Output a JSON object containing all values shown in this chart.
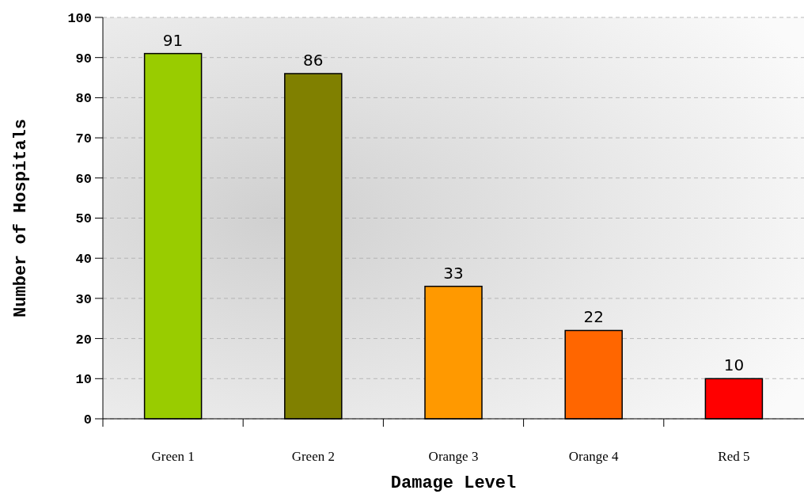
{
  "chart_data": {
    "type": "bar",
    "xlabel": "Damage Level",
    "ylabel": "Number of Hospitals",
    "categories": [
      "Green 1",
      "Green 2",
      "Orange 3",
      "Orange 4",
      "Red 5"
    ],
    "values": [
      91,
      86,
      33,
      22,
      10
    ],
    "colors": [
      "#99cc00",
      "#808000",
      "#ff9900",
      "#ff6600",
      "#ff0000"
    ],
    "ylim": [
      0,
      100
    ],
    "yticks": [
      0,
      10,
      20,
      30,
      40,
      50,
      60,
      70,
      80,
      90,
      100
    ],
    "grid": "y",
    "data_labels": true
  }
}
